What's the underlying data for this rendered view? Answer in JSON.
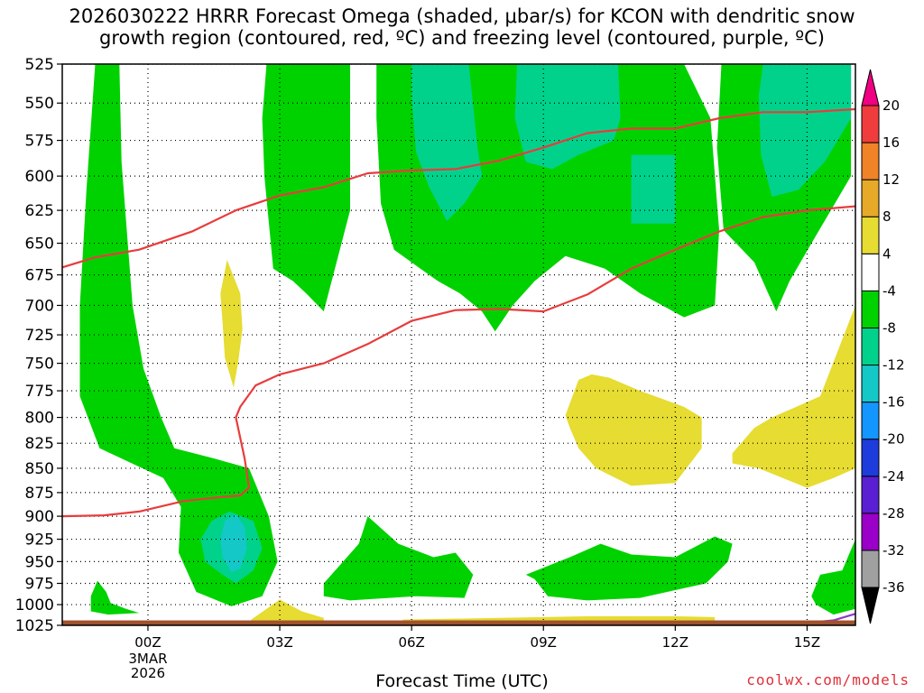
{
  "title_line1": "2026030222 HRRR Forecast Omega (shaded, μbar/s) for KCON with dendritic snow",
  "title_line2": "growth region (contoured, red, ºC) and freezing level (contoured, purple, ºC)",
  "credit": "coolwx.com/models",
  "chart_data": {
    "type": "heatmap",
    "title": "2026030222 HRRR Forecast Omega (shaded, μbar/s) for KCON with dendritic snow growth region (contoured, red, ºC) and freezing level (contoured, purple, ºC)",
    "xlabel": "Forecast Time (UTC)",
    "ylabel": "",
    "x_unit": "hours from 00Z 3MAR 2026",
    "xlim": [
      -1.95,
      16.1
    ],
    "ylim": [
      525,
      1025
    ],
    "y_log_scale": true,
    "y_inverted": true,
    "grid": true,
    "y_ticks": [
      525,
      550,
      575,
      600,
      625,
      650,
      675,
      700,
      725,
      750,
      775,
      800,
      825,
      850,
      875,
      900,
      925,
      950,
      975,
      1000,
      1025
    ],
    "x_ticks": [
      {
        "x": 0,
        "label": "00Z",
        "sub": [
          "3MAR",
          "2026"
        ]
      },
      {
        "x": 3,
        "label": "03Z",
        "sub": []
      },
      {
        "x": 6,
        "label": "06Z",
        "sub": []
      },
      {
        "x": 9,
        "label": "09Z",
        "sub": []
      },
      {
        "x": 12,
        "label": "12Z",
        "sub": []
      },
      {
        "x": 15,
        "label": "15Z",
        "sub": []
      }
    ],
    "colorbar": {
      "levels": [
        -36,
        -32,
        -28,
        -24,
        -20,
        -16,
        -12,
        -8,
        -4,
        4,
        8,
        12,
        16,
        20
      ],
      "colors": [
        "#000000",
        "#a0a0a0",
        "#9b00c8",
        "#5a1fd2",
        "#1e3cdc",
        "#1496ff",
        "#14c8c8",
        "#00d28c",
        "#00d200",
        "#ffffff",
        "#e6dc32",
        "#e6aa28",
        "#f08228",
        "#f03c3c",
        "#f00082"
      ]
    },
    "shading": [
      {
        "level": "-8 to -4",
        "color": "#00d200",
        "regions": [
          [
            [
              -1.2,
              525
            ],
            [
              -0.65,
              525
            ],
            [
              -0.6,
              590
            ],
            [
              -0.35,
              700
            ],
            [
              -0.1,
              755
            ],
            [
              0.3,
              800
            ],
            [
              0.6,
              830
            ],
            [
              1.5,
              840
            ],
            [
              2.3,
              850
            ],
            [
              2.75,
              900
            ],
            [
              2.95,
              950
            ],
            [
              2.6,
              990
            ],
            [
              1.9,
              1002
            ],
            [
              1.1,
              985
            ],
            [
              0.7,
              940
            ],
            [
              0.75,
              890
            ],
            [
              0.35,
              860
            ],
            [
              -1.1,
              830
            ],
            [
              -1.55,
              780
            ],
            [
              -1.55,
              700
            ],
            [
              -1.4,
              610
            ]
          ],
          [
            [
              2.7,
              525
            ],
            [
              4.6,
              525
            ],
            [
              4.6,
              625
            ],
            [
              4.0,
              705
            ],
            [
              3.6,
              690
            ],
            [
              3.3,
              680
            ],
            [
              2.85,
              670
            ],
            [
              2.65,
              600
            ],
            [
              2.6,
              560
            ]
          ],
          [
            [
              5.2,
              525
            ],
            [
              12.2,
              525
            ],
            [
              12.8,
              560
            ],
            [
              13.0,
              640
            ],
            [
              12.9,
              700
            ],
            [
              12.2,
              710
            ],
            [
              11.2,
              690
            ],
            [
              10.4,
              670
            ],
            [
              9.5,
              660
            ],
            [
              8.8,
              680
            ],
            [
              8.3,
              700
            ],
            [
              7.9,
              722
            ],
            [
              7.6,
              705
            ],
            [
              7.1,
              690
            ],
            [
              6.6,
              680
            ],
            [
              6.2,
              670
            ],
            [
              5.6,
              655
            ],
            [
              5.3,
              620
            ],
            [
              5.2,
              560
            ]
          ],
          [
            [
              13.05,
              525
            ],
            [
              16.0,
              525
            ],
            [
              16.0,
              600
            ],
            [
              15.1,
              650
            ],
            [
              14.6,
              680
            ],
            [
              14.3,
              705
            ],
            [
              13.8,
              665
            ],
            [
              13.1,
              640
            ],
            [
              12.95,
              580
            ]
          ],
          [
            [
              4.0,
              975
            ],
            [
              4.8,
              930
            ],
            [
              5.0,
              900
            ],
            [
              5.7,
              930
            ],
            [
              6.5,
              945
            ],
            [
              7.0,
              940
            ],
            [
              7.4,
              965
            ],
            [
              7.2,
              992
            ],
            [
              6.1,
              990
            ],
            [
              4.6,
              995
            ],
            [
              4.0,
              990
            ]
          ],
          [
            [
              8.6,
              965
            ],
            [
              9.6,
              945
            ],
            [
              10.3,
              930
            ],
            [
              11.0,
              942
            ],
            [
              12.0,
              945
            ],
            [
              12.9,
              922
            ],
            [
              13.3,
              930
            ],
            [
              13.2,
              950
            ],
            [
              12.7,
              975
            ],
            [
              11.2,
              992
            ],
            [
              10.0,
              995
            ],
            [
              9.1,
              990
            ],
            [
              8.8,
              970
            ]
          ],
          [
            [
              15.8,
              960
            ],
            [
              16.1,
              925
            ],
            [
              16.1,
              1005
            ],
            [
              15.6,
              1012
            ],
            [
              15.2,
              1000
            ],
            [
              15.1,
              990
            ],
            [
              15.3,
              965
            ]
          ],
          [
            [
              -1.3,
              990
            ],
            [
              -1.15,
              972
            ],
            [
              -0.95,
              985
            ],
            [
              -0.85,
              998
            ],
            [
              -0.5,
              1005
            ],
            [
              -0.2,
              1010
            ],
            [
              -0.9,
              1012
            ],
            [
              -1.3,
              1008
            ]
          ]
        ]
      },
      {
        "level": "-12 to -8",
        "color": "#00d28c",
        "regions": [
          [
            [
              6.0,
              525
            ],
            [
              7.3,
              525
            ],
            [
              7.5,
              580
            ],
            [
              7.6,
              600
            ],
            [
              7.2,
              620
            ],
            [
              6.8,
              633
            ],
            [
              6.4,
              608
            ],
            [
              6.1,
              583
            ],
            [
              6.0,
              545
            ]
          ],
          [
            [
              8.4,
              525
            ],
            [
              10.7,
              525
            ],
            [
              10.75,
              560
            ],
            [
              10.6,
              575
            ],
            [
              9.8,
              585
            ],
            [
              9.2,
              595
            ],
            [
              8.6,
              590
            ],
            [
              8.35,
              560
            ]
          ],
          [
            [
              11.0,
              585
            ],
            [
              12.0,
              585
            ],
            [
              12.0,
              635
            ],
            [
              11.0,
              635
            ]
          ],
          [
            [
              14.0,
              525
            ],
            [
              16.0,
              525
            ],
            [
              16.0,
              560
            ],
            [
              15.4,
              590
            ],
            [
              14.8,
              610
            ],
            [
              14.2,
              615
            ],
            [
              13.95,
              585
            ],
            [
              13.9,
              545
            ]
          ],
          [
            [
              1.2,
              925
            ],
            [
              1.45,
              905
            ],
            [
              1.85,
              895
            ],
            [
              2.4,
              905
            ],
            [
              2.6,
              935
            ],
            [
              2.4,
              960
            ],
            [
              2.0,
              975
            ],
            [
              1.7,
              965
            ],
            [
              1.3,
              950
            ]
          ]
        ]
      },
      {
        "level": "-16 to -12",
        "color": "#14c8c8",
        "regions": [
          [
            [
              1.75,
              905
            ],
            [
              2.0,
              898
            ],
            [
              2.2,
              912
            ],
            [
              2.25,
              935
            ],
            [
              2.1,
              958
            ],
            [
              1.9,
              962
            ],
            [
              1.7,
              945
            ],
            [
              1.65,
              925
            ]
          ]
        ]
      },
      {
        "level": "4 to 8",
        "color": "#e6dc32",
        "regions": [
          [
            [
              1.8,
              663
            ],
            [
              2.1,
              690
            ],
            [
              2.15,
              720
            ],
            [
              2.05,
              750
            ],
            [
              1.95,
              772
            ],
            [
              1.75,
              745
            ],
            [
              1.7,
              715
            ],
            [
              1.65,
              690
            ]
          ],
          [
            [
              9.5,
              798
            ],
            [
              9.8,
              765
            ],
            [
              10.1,
              760
            ],
            [
              10.5,
              763
            ],
            [
              11.2,
              775
            ],
            [
              12.2,
              790
            ],
            [
              12.6,
              800
            ],
            [
              12.6,
              830
            ],
            [
              12.0,
              865
            ],
            [
              11.0,
              868
            ],
            [
              10.2,
              850
            ],
            [
              9.8,
              830
            ],
            [
              9.6,
              810
            ]
          ],
          [
            [
              13.3,
              835
            ],
            [
              13.8,
              810
            ],
            [
              14.2,
              800
            ],
            [
              15.3,
              780
            ],
            [
              16.1,
              700
            ],
            [
              16.1,
              850
            ],
            [
              15.6,
              860
            ],
            [
              15.0,
              870
            ],
            [
              13.9,
              850
            ],
            [
              13.3,
              845
            ]
          ],
          [
            [
              2.35,
              1018
            ],
            [
              2.7,
              1005
            ],
            [
              3.0,
              994
            ],
            [
              3.5,
              1008
            ],
            [
              4.0,
              1016
            ],
            [
              4.0,
              1020
            ],
            [
              2.35,
              1020
            ]
          ],
          [
            [
              5.8,
              1018
            ],
            [
              8.0,
              1016
            ],
            [
              10.0,
              1014
            ],
            [
              12.0,
              1014
            ],
            [
              12.9,
              1015
            ],
            [
              12.9,
              1019
            ],
            [
              5.8,
              1020
            ]
          ]
        ]
      }
    ],
    "series": [
      {
        "name": "dendritic snow growth region (red, ºC) upper",
        "color": "#e83c3c",
        "x": [
          -1.95,
          -1.2,
          -0.2,
          1.0,
          2.0,
          3.0,
          4.0,
          5.0,
          6.0,
          7.0,
          8.0,
          9.0,
          10.0,
          11.0,
          12.0,
          13.0,
          14.0,
          15.0,
          16.1
        ],
        "y": [
          669,
          661,
          655,
          641,
          625,
          614,
          608,
          598,
          596,
          595,
          589,
          580,
          570,
          567,
          567,
          560,
          556,
          556,
          554
        ]
      },
      {
        "name": "dendritic snow growth region (red, ºC) lower",
        "color": "#e83c3c",
        "x": [
          -1.95,
          -1.0,
          -0.2,
          0.8,
          1.6,
          2.1,
          2.3,
          2.2,
          2.0,
          2.1,
          2.45,
          3.0,
          4.0,
          5.0,
          6.0,
          7.0,
          8.0,
          9.0,
          10.0,
          11.0,
          12.0,
          13.0,
          14.0,
          15.0,
          16.1
        ],
        "y": [
          900,
          899,
          895,
          884,
          880,
          878,
          870,
          840,
          800,
          790,
          770,
          760,
          750,
          733,
          713,
          704,
          703,
          705,
          691,
          670,
          655,
          641,
          630,
          625,
          622
        ]
      },
      {
        "name": "freezing level (purple, ºC)",
        "color": "#8a3cc8",
        "x": [
          15.0,
          15.6,
          16.1
        ],
        "y": [
          1022,
          1019,
          1011
        ]
      }
    ],
    "ground_color": "#a0522d"
  }
}
